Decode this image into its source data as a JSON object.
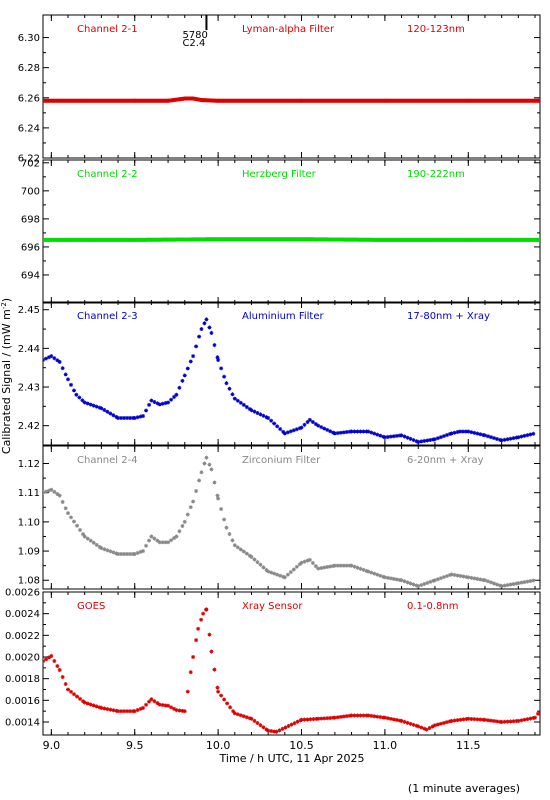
{
  "ylabel_main": "Calibrated Signal / (mW m",
  "ylabel_sup": "-2",
  "ylabel_end": ")",
  "footer_note": "(1 minute averages)",
  "marker": {
    "x": 9.93,
    "labels": [
      "5780",
      "C2.4"
    ]
  },
  "chart_data": {
    "type": "scatter",
    "xlabel": "Time / h UTC, 11 Apr 2025",
    "xlim": [
      8.95,
      11.93
    ],
    "xticks": [
      9.0,
      9.5,
      10.0,
      10.5,
      11.0,
      11.5
    ],
    "xtick_labels": [
      "9.0",
      "9.5",
      "10.0",
      "10.5",
      "11.0",
      "11.5"
    ],
    "panels": [
      {
        "channel": "Channel 2-1",
        "filter": "Lyman-alpha Filter",
        "band": "120-123nm",
        "color": "#dd0000",
        "ylim": [
          6.22,
          6.315
        ],
        "yticks": [
          6.22,
          6.24,
          6.26,
          6.28,
          6.3
        ],
        "ytick_labels": [
          "6.22",
          "6.24",
          "6.26",
          "6.28",
          "6.30"
        ],
        "points": [
          [
            8.95,
            6.258
          ],
          [
            9.2,
            6.258
          ],
          [
            9.5,
            6.258
          ],
          [
            9.7,
            6.258
          ],
          [
            9.8,
            6.2595
          ],
          [
            9.85,
            6.2595
          ],
          [
            9.9,
            6.2585
          ],
          [
            10.0,
            6.258
          ],
          [
            10.5,
            6.258
          ],
          [
            11.0,
            6.258
          ],
          [
            11.5,
            6.258
          ],
          [
            11.93,
            6.258
          ]
        ]
      },
      {
        "channel": "Channel 2-2",
        "filter": "Herzberg Filter",
        "band": "190-222nm",
        "color": "#00dd00",
        "ylim": [
          692,
          702.2
        ],
        "yticks": [
          694,
          696,
          698,
          700,
          702
        ],
        "ytick_labels": [
          "694",
          "696",
          "698",
          "700",
          "702"
        ],
        "points": [
          [
            8.95,
            696.5
          ],
          [
            9.5,
            696.5
          ],
          [
            10.0,
            696.55
          ],
          [
            10.5,
            696.55
          ],
          [
            11.0,
            696.5
          ],
          [
            11.5,
            696.5
          ],
          [
            11.93,
            696.5
          ]
        ]
      },
      {
        "channel": "Channel 2-3",
        "filter": "Aluminium Filter",
        "band": "17-80nm + Xray",
        "color": "#0000cc",
        "ylim": [
          2.415,
          2.452
        ],
        "yticks": [
          2.42,
          2.43,
          2.44,
          2.45
        ],
        "ytick_labels": [
          "2.42",
          "2.43",
          "2.44",
          "2.45"
        ],
        "points": [
          [
            8.95,
            2.437
          ],
          [
            9.0,
            2.438
          ],
          [
            9.05,
            2.4365
          ],
          [
            9.1,
            2.432
          ],
          [
            9.15,
            2.428
          ],
          [
            9.2,
            2.426
          ],
          [
            9.3,
            2.4245
          ],
          [
            9.4,
            2.422
          ],
          [
            9.5,
            2.422
          ],
          [
            9.55,
            2.4225
          ],
          [
            9.6,
            2.4265
          ],
          [
            9.65,
            2.4255
          ],
          [
            9.7,
            2.426
          ],
          [
            9.75,
            2.428
          ],
          [
            9.8,
            2.433
          ],
          [
            9.85,
            2.438
          ],
          [
            9.9,
            2.445
          ],
          [
            9.93,
            2.4475
          ],
          [
            9.96,
            2.444
          ],
          [
            10.0,
            2.437
          ],
          [
            10.05,
            2.431
          ],
          [
            10.1,
            2.427
          ],
          [
            10.2,
            2.424
          ],
          [
            10.3,
            2.422
          ],
          [
            10.4,
            2.418
          ],
          [
            10.5,
            2.4195
          ],
          [
            10.55,
            2.4215
          ],
          [
            10.6,
            2.42
          ],
          [
            10.7,
            2.418
          ],
          [
            10.8,
            2.4185
          ],
          [
            10.9,
            2.4185
          ],
          [
            11.0,
            2.417
          ],
          [
            11.1,
            2.4175
          ],
          [
            11.2,
            2.4158
          ],
          [
            11.3,
            2.4165
          ],
          [
            11.4,
            2.418
          ],
          [
            11.45,
            2.4185
          ],
          [
            11.5,
            2.4185
          ],
          [
            11.6,
            2.4175
          ],
          [
            11.7,
            2.4162
          ],
          [
            11.8,
            2.417
          ],
          [
            11.9,
            2.418
          ]
        ]
      },
      {
        "channel": "Channel 2-4",
        "filter": "Zirconium Filter",
        "band": "6-20nm + Xray",
        "color": "#888888",
        "ylim": [
          1.077,
          1.126
        ],
        "yticks": [
          1.08,
          1.09,
          1.1,
          1.11,
          1.12
        ],
        "ytick_labels": [
          "1.08",
          "1.09",
          "1.10",
          "1.11",
          "1.12"
        ],
        "points": [
          [
            8.95,
            1.11
          ],
          [
            9.0,
            1.111
          ],
          [
            9.05,
            1.109
          ],
          [
            9.1,
            1.103
          ],
          [
            9.2,
            1.095
          ],
          [
            9.3,
            1.091
          ],
          [
            9.4,
            1.089
          ],
          [
            9.5,
            1.089
          ],
          [
            9.55,
            1.09
          ],
          [
            9.6,
            1.095
          ],
          [
            9.65,
            1.093
          ],
          [
            9.7,
            1.093
          ],
          [
            9.75,
            1.095
          ],
          [
            9.8,
            1.1
          ],
          [
            9.85,
            1.107
          ],
          [
            9.9,
            1.117
          ],
          [
            9.93,
            1.122
          ],
          [
            9.96,
            1.118
          ],
          [
            10.0,
            1.108
          ],
          [
            10.05,
            1.098
          ],
          [
            10.1,
            1.092
          ],
          [
            10.2,
            1.088
          ],
          [
            10.3,
            1.083
          ],
          [
            10.4,
            1.081
          ],
          [
            10.5,
            1.086
          ],
          [
            10.55,
            1.087
          ],
          [
            10.6,
            1.084
          ],
          [
            10.7,
            1.085
          ],
          [
            10.8,
            1.085
          ],
          [
            10.9,
            1.083
          ],
          [
            11.0,
            1.081
          ],
          [
            11.1,
            1.08
          ],
          [
            11.2,
            1.078
          ],
          [
            11.3,
            1.08
          ],
          [
            11.4,
            1.082
          ],
          [
            11.5,
            1.081
          ],
          [
            11.6,
            1.08
          ],
          [
            11.7,
            1.078
          ],
          [
            11.8,
            1.079
          ],
          [
            11.9,
            1.08
          ]
        ]
      },
      {
        "channel": "GOES",
        "filter": "Xray Sensor",
        "band": "0.1-0.8nm",
        "color": "#dd0000",
        "ylim": [
          0.00128,
          0.0026
        ],
        "yticks": [
          0.0014,
          0.0016,
          0.0018,
          0.002,
          0.0022,
          0.0024,
          0.0026
        ],
        "ytick_labels": [
          "0.0014",
          "0.0016",
          "0.0018",
          "0.0020",
          "0.0022",
          "0.0024",
          "0.0026"
        ],
        "points": [
          [
            8.95,
            0.00196
          ],
          [
            9.0,
            0.00201
          ],
          [
            9.05,
            0.00188
          ],
          [
            9.1,
            0.0017
          ],
          [
            9.2,
            0.00158
          ],
          [
            9.3,
            0.00153
          ],
          [
            9.4,
            0.0015
          ],
          [
            9.5,
            0.0015
          ],
          [
            9.55,
            0.00153
          ],
          [
            9.6,
            0.00161
          ],
          [
            9.65,
            0.00156
          ],
          [
            9.7,
            0.00155
          ],
          [
            9.75,
            0.00151
          ],
          [
            9.8,
            0.0015
          ],
          [
            9.85,
            0.002
          ],
          [
            9.88,
            0.00226
          ],
          [
            9.91,
            0.0024
          ],
          [
            9.93,
            0.00244
          ],
          [
            9.96,
            0.00205
          ],
          [
            10.0,
            0.00168
          ],
          [
            10.1,
            0.00148
          ],
          [
            10.2,
            0.00143
          ],
          [
            10.3,
            0.00132
          ],
          [
            10.35,
            0.00131
          ],
          [
            10.5,
            0.00142
          ],
          [
            10.6,
            0.00143
          ],
          [
            10.7,
            0.00144
          ],
          [
            10.8,
            0.00146
          ],
          [
            10.9,
            0.00146
          ],
          [
            11.0,
            0.00144
          ],
          [
            11.1,
            0.00141
          ],
          [
            11.2,
            0.00136
          ],
          [
            11.25,
            0.00133
          ],
          [
            11.3,
            0.00137
          ],
          [
            11.4,
            0.00141
          ],
          [
            11.5,
            0.00143
          ],
          [
            11.6,
            0.00142
          ],
          [
            11.7,
            0.0014
          ],
          [
            11.8,
            0.00141
          ],
          [
            11.9,
            0.00144
          ],
          [
            11.93,
            0.0015
          ]
        ]
      }
    ]
  }
}
